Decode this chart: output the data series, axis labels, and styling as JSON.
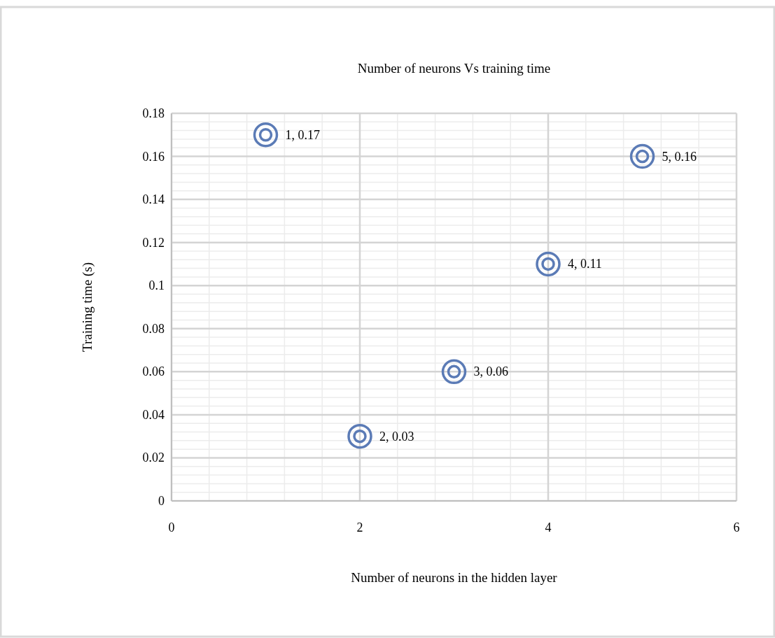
{
  "chart_data": {
    "type": "scatter",
    "title": "Number of neurons Vs training time",
    "xlabel": "Number of neurons in the hidden layer",
    "ylabel": "Training time (s)",
    "x": [
      1,
      2,
      3,
      4,
      5
    ],
    "values": [
      0.17,
      0.03,
      0.06,
      0.11,
      0.16
    ],
    "color": "#5b7bb6",
    "value_labels": [
      "1, 0.17",
      "2, 0.03",
      "3, 0.06",
      "4, 0.11",
      "5, 0.16"
    ],
    "xlim": [
      0,
      6
    ],
    "xticks": [
      0,
      2,
      4,
      6
    ],
    "ylim": [
      0,
      0.18
    ],
    "yticks": [
      0,
      0.02,
      0.04,
      0.06,
      0.08,
      0.1,
      0.12,
      0.14,
      0.16,
      0.18
    ],
    "grid": true,
    "marker": "circle"
  }
}
